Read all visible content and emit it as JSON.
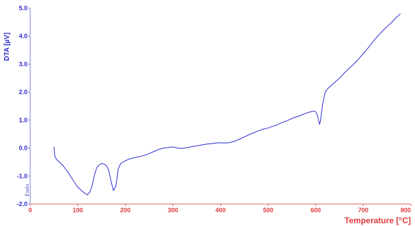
{
  "chart_data": {
    "type": "line",
    "ylabel": "DTA  [µV]",
    "xlabel": "Temperature  [°C]",
    "exo_label": "Endo",
    "xlim": [
      0,
      800
    ],
    "ylim": [
      -2.0,
      5.0
    ],
    "x_ticks": [
      "0",
      "100",
      "200",
      "300",
      "400",
      "500",
      "600",
      "700",
      "800"
    ],
    "y_ticks": [
      "-2.0",
      "-1.0",
      "0.0",
      "1.0",
      "2.0",
      "3.0",
      "4.0",
      "5.0"
    ],
    "grid": false,
    "colors": {
      "line": "#2a2ad2",
      "y_axis_text": "#2b2bd0",
      "x_axis_text": "#e23a3a"
    },
    "series": [
      {
        "x": [
          50,
          51,
          52,
          55,
          60,
          70,
          80,
          90,
          100,
          110,
          115,
          120,
          125,
          130,
          135,
          140,
          145,
          150,
          155,
          160,
          165,
          170,
          175,
          180,
          185,
          190,
          200,
          210,
          220,
          230,
          240,
          250,
          260,
          270,
          280,
          290,
          300,
          310,
          320,
          330,
          340,
          350,
          360,
          370,
          380,
          390,
          400,
          410,
          420,
          430,
          440,
          450,
          460,
          470,
          480,
          490,
          500,
          510,
          520,
          530,
          540,
          550,
          560,
          570,
          580,
          590,
          595,
          600,
          603,
          606,
          608,
          610,
          612,
          614,
          616,
          618,
          620,
          625,
          630,
          640,
          650,
          660,
          670,
          680,
          690,
          700,
          710,
          720,
          730,
          740,
          750,
          760,
          770,
          778
        ],
        "y": [
          0.05,
          -0.15,
          -0.3,
          -0.4,
          -0.48,
          -0.65,
          -0.88,
          -1.15,
          -1.4,
          -1.55,
          -1.62,
          -1.67,
          -1.58,
          -1.35,
          -0.95,
          -0.7,
          -0.6,
          -0.55,
          -0.57,
          -0.62,
          -0.8,
          -1.2,
          -1.52,
          -1.35,
          -0.75,
          -0.55,
          -0.45,
          -0.38,
          -0.34,
          -0.3,
          -0.26,
          -0.2,
          -0.12,
          -0.05,
          0.0,
          0.02,
          0.04,
          0.0,
          -0.01,
          0.02,
          0.05,
          0.08,
          0.11,
          0.14,
          0.16,
          0.18,
          0.19,
          0.18,
          0.2,
          0.25,
          0.32,
          0.4,
          0.48,
          0.55,
          0.62,
          0.68,
          0.72,
          0.78,
          0.84,
          0.92,
          0.98,
          1.06,
          1.12,
          1.18,
          1.25,
          1.3,
          1.32,
          1.3,
          1.2,
          1.0,
          0.85,
          0.95,
          1.25,
          1.5,
          1.7,
          1.85,
          2.0,
          2.12,
          2.2,
          2.35,
          2.5,
          2.68,
          2.85,
          3.0,
          3.18,
          3.38,
          3.58,
          3.8,
          4.0,
          4.18,
          4.35,
          4.5,
          4.68,
          4.8
        ]
      }
    ]
  }
}
